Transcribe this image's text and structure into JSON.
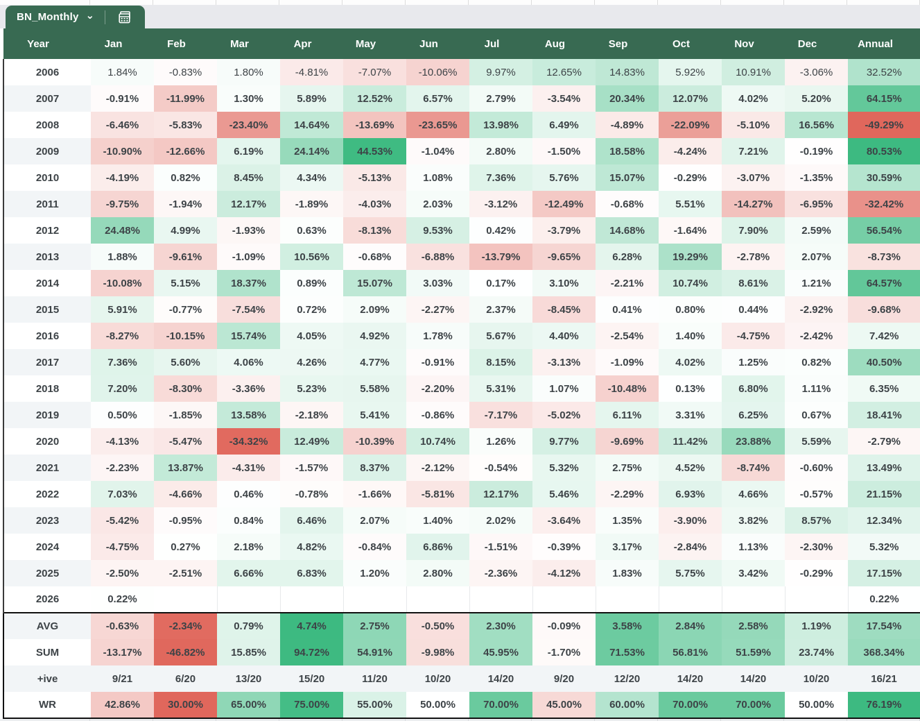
{
  "tab": {
    "label": "BN_Monthly",
    "chevron": "⌄",
    "icon": "sheet-grid-icon"
  },
  "columns": [
    "Year",
    "Jan",
    "Feb",
    "Mar",
    "Apr",
    "May",
    "Jun",
    "Jul",
    "Aug",
    "Sep",
    "Oct",
    "Nov",
    "Dec",
    "Annual"
  ],
  "rows": [
    {
      "label": "2006",
      "values": [
        "1.84%",
        "-0.83%",
        "1.80%",
        "-4.81%",
        "-7.07%",
        "-10.06%",
        "9.97%",
        "12.65%",
        "14.83%",
        "5.92%",
        "10.91%",
        "-3.06%",
        "32.52%"
      ]
    },
    {
      "label": "2007",
      "values": [
        "-0.91%",
        "-11.99%",
        "1.30%",
        "5.89%",
        "12.52%",
        "6.57%",
        "2.79%",
        "-3.54%",
        "20.34%",
        "12.07%",
        "4.02%",
        "5.20%",
        "64.15%"
      ]
    },
    {
      "label": "2008",
      "values": [
        "-6.46%",
        "-5.83%",
        "-23.40%",
        "14.64%",
        "-13.69%",
        "-23.65%",
        "13.98%",
        "6.49%",
        "-4.89%",
        "-22.09%",
        "-5.10%",
        "16.56%",
        "-49.29%"
      ]
    },
    {
      "label": "2009",
      "values": [
        "-10.90%",
        "-12.66%",
        "6.19%",
        "24.14%",
        "44.53%",
        "-1.04%",
        "2.80%",
        "-1.50%",
        "18.58%",
        "-4.24%",
        "7.21%",
        "-0.19%",
        "80.53%"
      ]
    },
    {
      "label": "2010",
      "values": [
        "-4.19%",
        "0.82%",
        "8.45%",
        "4.34%",
        "-5.13%",
        "1.08%",
        "7.36%",
        "5.76%",
        "15.07%",
        "-0.29%",
        "-3.07%",
        "-1.35%",
        "30.59%"
      ]
    },
    {
      "label": "2011",
      "values": [
        "-9.75%",
        "-1.94%",
        "12.17%",
        "-1.89%",
        "-4.03%",
        "2.03%",
        "-3.12%",
        "-12.49%",
        "-0.68%",
        "5.51%",
        "-14.27%",
        "-6.95%",
        "-32.42%"
      ]
    },
    {
      "label": "2012",
      "values": [
        "24.48%",
        "4.99%",
        "-1.93%",
        "0.63%",
        "-8.13%",
        "9.53%",
        "0.42%",
        "-3.79%",
        "14.68%",
        "-1.64%",
        "7.90%",
        "2.59%",
        "56.54%"
      ]
    },
    {
      "label": "2013",
      "values": [
        "1.88%",
        "-9.61%",
        "-1.09%",
        "10.56%",
        "-0.68%",
        "-6.88%",
        "-13.79%",
        "-9.65%",
        "6.28%",
        "19.29%",
        "-2.78%",
        "2.07%",
        "-8.73%"
      ]
    },
    {
      "label": "2014",
      "values": [
        "-10.08%",
        "5.15%",
        "18.37%",
        "0.89%",
        "15.07%",
        "3.03%",
        "0.17%",
        "3.10%",
        "-2.21%",
        "10.74%",
        "8.61%",
        "1.21%",
        "64.57%"
      ]
    },
    {
      "label": "2015",
      "values": [
        "5.91%",
        "-0.77%",
        "-7.54%",
        "0.72%",
        "2.09%",
        "-2.27%",
        "2.37%",
        "-8.45%",
        "0.41%",
        "0.80%",
        "0.44%",
        "-2.92%",
        "-9.68%"
      ]
    },
    {
      "label": "2016",
      "values": [
        "-8.27%",
        "-10.15%",
        "15.74%",
        "4.05%",
        "4.92%",
        "1.78%",
        "5.67%",
        "4.40%",
        "-2.54%",
        "1.40%",
        "-4.75%",
        "-2.42%",
        "7.42%"
      ]
    },
    {
      "label": "2017",
      "values": [
        "7.36%",
        "5.60%",
        "4.06%",
        "4.26%",
        "4.77%",
        "-0.91%",
        "8.15%",
        "-3.13%",
        "-1.09%",
        "4.02%",
        "1.25%",
        "0.82%",
        "40.50%"
      ]
    },
    {
      "label": "2018",
      "values": [
        "7.20%",
        "-8.30%",
        "-3.36%",
        "5.23%",
        "5.58%",
        "-2.20%",
        "5.31%",
        "1.07%",
        "-10.48%",
        "0.13%",
        "6.80%",
        "1.11%",
        "6.35%"
      ]
    },
    {
      "label": "2019",
      "values": [
        "0.50%",
        "-1.85%",
        "13.58%",
        "-2.18%",
        "5.41%",
        "-0.86%",
        "-7.17%",
        "-5.02%",
        "6.11%",
        "3.31%",
        "6.25%",
        "0.67%",
        "18.41%"
      ]
    },
    {
      "label": "2020",
      "values": [
        "-4.13%",
        "-5.47%",
        "-34.32%",
        "12.49%",
        "-10.39%",
        "10.74%",
        "1.26%",
        "9.77%",
        "-9.69%",
        "11.42%",
        "23.88%",
        "5.59%",
        "-2.79%"
      ]
    },
    {
      "label": "2021",
      "values": [
        "-2.23%",
        "13.87%",
        "-4.31%",
        "-1.57%",
        "8.37%",
        "-2.12%",
        "-0.54%",
        "5.32%",
        "2.75%",
        "4.52%",
        "-8.74%",
        "-0.60%",
        "13.49%"
      ]
    },
    {
      "label": "2022",
      "values": [
        "7.03%",
        "-4.66%",
        "0.46%",
        "-0.78%",
        "-1.66%",
        "-5.81%",
        "12.17%",
        "5.46%",
        "-2.29%",
        "6.93%",
        "4.66%",
        "-0.57%",
        "21.15%"
      ]
    },
    {
      "label": "2023",
      "values": [
        "-5.42%",
        "-0.95%",
        "0.84%",
        "6.46%",
        "2.07%",
        "1.40%",
        "2.02%",
        "-3.64%",
        "1.35%",
        "-3.90%",
        "3.82%",
        "8.57%",
        "12.34%"
      ]
    },
    {
      "label": "2024",
      "values": [
        "-4.75%",
        "0.27%",
        "2.18%",
        "4.82%",
        "-0.84%",
        "6.86%",
        "-1.51%",
        "-0.39%",
        "3.17%",
        "-2.84%",
        "1.13%",
        "-2.30%",
        "5.32%"
      ]
    },
    {
      "label": "2025",
      "values": [
        "-2.50%",
        "-2.51%",
        "6.66%",
        "6.83%",
        "1.20%",
        "2.80%",
        "-2.36%",
        "-4.12%",
        "1.83%",
        "5.75%",
        "3.42%",
        "-0.29%",
        "17.15%"
      ]
    },
    {
      "label": "2026",
      "values": [
        "0.22%",
        "",
        "",
        "",
        "",
        "",
        "",
        "",
        "",
        "",
        "",
        "",
        "0.22%"
      ]
    }
  ],
  "summary": [
    {
      "label": "AVG",
      "values": [
        "-0.63%",
        "-2.34%",
        "0.79%",
        "4.74%",
        "2.75%",
        "-0.50%",
        "2.30%",
        "-0.09%",
        "3.58%",
        "2.84%",
        "2.58%",
        "1.19%",
        "17.54%"
      ]
    },
    {
      "label": "SUM",
      "values": [
        "-13.17%",
        "-46.82%",
        "15.85%",
        "94.72%",
        "54.91%",
        "-9.98%",
        "45.95%",
        "-1.70%",
        "71.53%",
        "56.81%",
        "51.59%",
        "23.74%",
        "368.34%"
      ]
    },
    {
      "label": "+ive",
      "values": [
        "9/21",
        "6/20",
        "13/20",
        "15/20",
        "11/20",
        "10/20",
        "14/20",
        "9/20",
        "12/20",
        "14/20",
        "14/20",
        "10/20",
        "16/21"
      ]
    },
    {
      "label": "WR",
      "values": [
        "42.86%",
        "30.00%",
        "65.00%",
        "75.00%",
        "55.00%",
        "50.00%",
        "70.00%",
        "45.00%",
        "60.00%",
        "70.00%",
        "70.00%",
        "50.00%",
        "76.19%"
      ]
    }
  ],
  "colors": {
    "header_green": "#386a52",
    "heat_green": "#3dba81",
    "heat_red": "#e0675c",
    "row_stripe": "#f2f5f7",
    "text": "#3d4347"
  },
  "heat_scales": {
    "matrix": {
      "g": 45,
      "r": 35,
      "ag": 80,
      "ar": 45
    },
    "AVG": {
      "g": 4.74,
      "r": 2.4,
      "ag": 35,
      "ar": 35
    },
    "SUM": {
      "g": 95,
      "r": 47,
      "ag": 700,
      "ar": 470
    },
    "WR": {
      "wr": true,
      "mid": 50,
      "gspan": 26,
      "rspan": 20
    }
  },
  "layout_widths": [
    126,
    91,
    91,
    91,
    91,
    91,
    91,
    91,
    91,
    91,
    91,
    91,
    91,
    105
  ]
}
